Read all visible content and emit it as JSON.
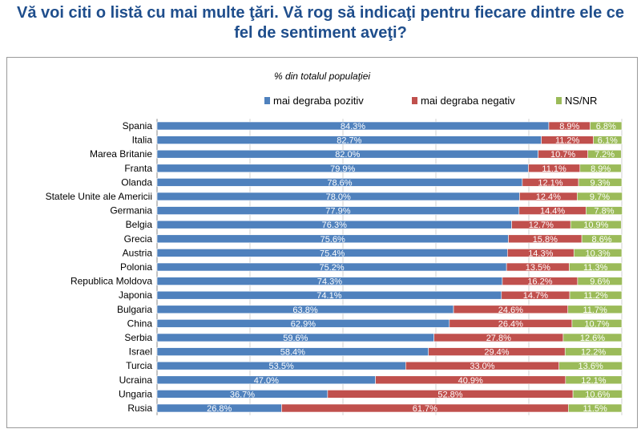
{
  "title_line1": "Vă  voi citi o listă cu mai multe ţări. Vă rog să indicaţi pentru fiecare dintre ele ce",
  "title_line2": "fel de sentiment aveţi?",
  "colors": {
    "positive": "#4f81bd",
    "negative": "#c0504d",
    "ns_nr": "#9bbb59",
    "title": "#1f4e8c"
  },
  "chart_data": {
    "type": "bar",
    "orientation": "horizontal",
    "stacked": true,
    "title": "% din totalul populaţiei",
    "legend_position": "top",
    "xlim": [
      0,
      100
    ],
    "categories": [
      "Spania",
      "Italia",
      "Marea Britanie",
      "Franta",
      "Olanda",
      "Statele Unite ale Americii",
      "Germania",
      "Belgia",
      "Grecia",
      "Austria",
      "Polonia",
      "Republica Moldova",
      "Japonia",
      "Bulgaria",
      "China",
      "Serbia",
      "Israel",
      "Turcia",
      "Ucraina",
      "Ungaria",
      "Rusia"
    ],
    "series": [
      {
        "name": "mai degraba pozitiv",
        "color": "#4f81bd",
        "values": [
          84.3,
          82.7,
          82.0,
          79.9,
          78.6,
          78.0,
          77.9,
          76.3,
          75.6,
          75.4,
          75.2,
          74.3,
          74.1,
          63.8,
          62.9,
          59.6,
          58.4,
          53.5,
          47.0,
          36.7,
          26.8
        ],
        "labels": [
          "84.3%",
          "82.7%",
          "82.0%",
          "79.9%",
          "78.6%",
          "78.0%",
          "77.9%",
          "76.3%",
          "75.6%",
          "75.4%",
          "75.2%",
          "74.3%",
          "74.1%",
          "63.8%",
          "62.9%",
          "59.6%",
          "58.4%",
          "53.5%",
          "47.0%",
          "36.7%",
          "26.8%"
        ]
      },
      {
        "name": "mai degraba negativ",
        "color": "#c0504d",
        "values": [
          8.9,
          11.2,
          10.7,
          11.1,
          12.1,
          12.4,
          14.4,
          12.7,
          15.8,
          14.3,
          13.5,
          16.2,
          14.7,
          24.6,
          26.4,
          27.8,
          29.4,
          33.0,
          40.9,
          52.8,
          61.7
        ],
        "labels": [
          "8.9%",
          "11.2%",
          "10.7%",
          "11.1%",
          "12.1%",
          "12.4%",
          "14.4%",
          "12.7%",
          "15.8%",
          "14.3%",
          "13.5%",
          "16.2%",
          "14.7%",
          "24.6%",
          "26.4%",
          "27.8%",
          "29.4%",
          "33.0%",
          "40.9%",
          "52.8%",
          "61.7%"
        ]
      },
      {
        "name": "NS/NR",
        "color": "#9bbb59",
        "values": [
          6.8,
          6.1,
          7.2,
          8.9,
          9.3,
          9.7,
          7.8,
          10.9,
          8.6,
          10.3,
          11.3,
          9.6,
          11.2,
          11.7,
          10.7,
          12.6,
          12.2,
          13.6,
          12.1,
          10.6,
          11.5
        ],
        "labels": [
          "6.8%",
          "6.1%",
          "7.2%",
          "8.9%",
          "9.3%",
          "9.7%",
          "7.8%",
          "10.9%",
          "8.6%",
          "10.3%",
          "11.3%",
          "9.6%",
          "11.2%",
          "11.7%",
          "10.7%",
          "12.6%",
          "12.2%",
          "13.6%",
          "12.1%",
          "10.6%",
          "11.5%"
        ]
      }
    ]
  }
}
